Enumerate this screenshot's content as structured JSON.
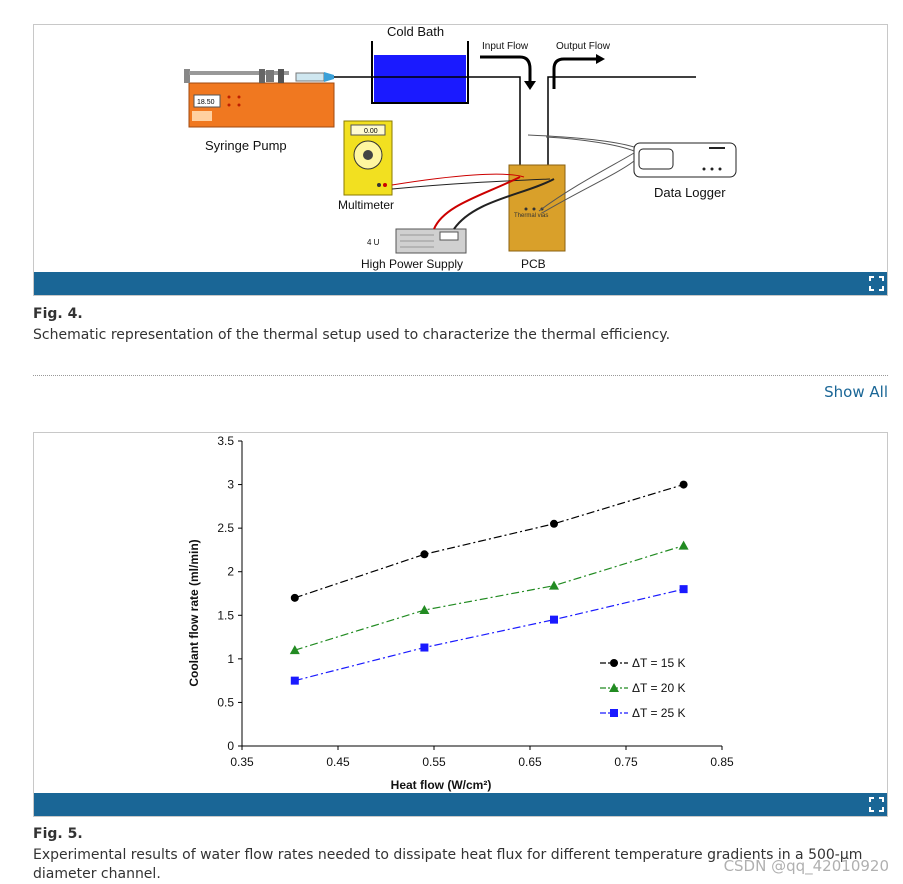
{
  "fig4": {
    "label": "Fig. 4.",
    "caption": "Schematic representation of the thermal setup used to characterize the thermal efficiency.",
    "schematic": {
      "cold_bath": "Cold Bath",
      "input_flow": "Input Flow",
      "output_flow": "Output Flow",
      "syringe_pump": "Syringe Pump",
      "pump_display": "18.50",
      "multimeter": "Multimeter",
      "multimeter_display": "0.00",
      "data_logger": "Data Logger",
      "pcb": "PCB",
      "thermal_vias": "Thermal vias",
      "power_supply": "High Power Supply",
      "power_mark": "4 U"
    }
  },
  "show_all": "Show All",
  "fig5": {
    "label": "Fig. 5.",
    "caption": "Experimental results of water flow rates needed to dissipate heat flux for different temperature gradients in a 500-μm diameter channel."
  },
  "chart_data": {
    "type": "line",
    "xlabel": "Heat flow (W/cm²)",
    "ylabel": "Coolant flow rate (ml/min)",
    "xlim": [
      0.35,
      0.85
    ],
    "ylim": [
      0,
      3.5
    ],
    "xticks": [
      "0.35",
      "0.45",
      "0.55",
      "0.65",
      "0.75",
      "0.85"
    ],
    "yticks": [
      "0",
      "0.5",
      "1",
      "1.5",
      "2",
      "2.5",
      "3",
      "3.5"
    ],
    "x": [
      0.405,
      0.54,
      0.675,
      0.81
    ],
    "series": [
      {
        "name": "ΔT = 15 K",
        "values": [
          1.7,
          2.2,
          2.55,
          3.0
        ],
        "color": "#000000",
        "marker": "circle"
      },
      {
        "name": "ΔT = 20 K",
        "values": [
          1.1,
          1.56,
          1.84,
          2.3
        ],
        "color": "#228b22",
        "marker": "triangle"
      },
      {
        "name": "ΔT = 25 K",
        "values": [
          0.75,
          1.13,
          1.45,
          1.8
        ],
        "color": "#1a1aff",
        "marker": "square"
      }
    ],
    "legend": "bottom-right",
    "grid": false
  },
  "watermark": "CSDN @qq_42010920",
  "colors": {
    "bar": "#1a6696",
    "link": "#1a6696"
  }
}
